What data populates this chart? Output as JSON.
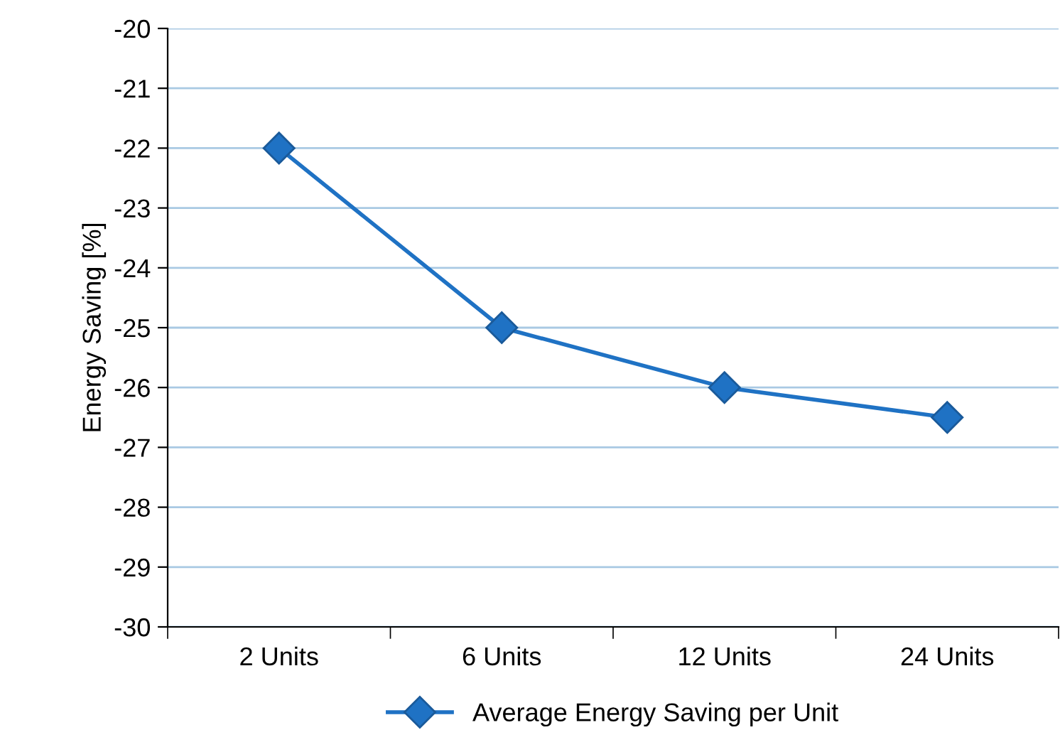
{
  "chart_data": {
    "type": "line",
    "ylabel": "Energy Saving [%]",
    "categories": [
      "2 Units",
      "6 Units",
      "12 Units",
      "24 Units"
    ],
    "series": [
      {
        "name": "Average Energy Saving per Unit",
        "color": "#1f72c4",
        "values": [
          -22,
          -25,
          -26,
          -26.5
        ]
      }
    ],
    "ylim": [
      -30,
      -20
    ],
    "yticks": [
      -30,
      -29,
      -28,
      -27,
      -26,
      -25,
      -24,
      -23,
      -22,
      -21,
      -20
    ],
    "grid": "y",
    "legend": "bottom",
    "marker": "diamond",
    "line_style": "solid"
  }
}
